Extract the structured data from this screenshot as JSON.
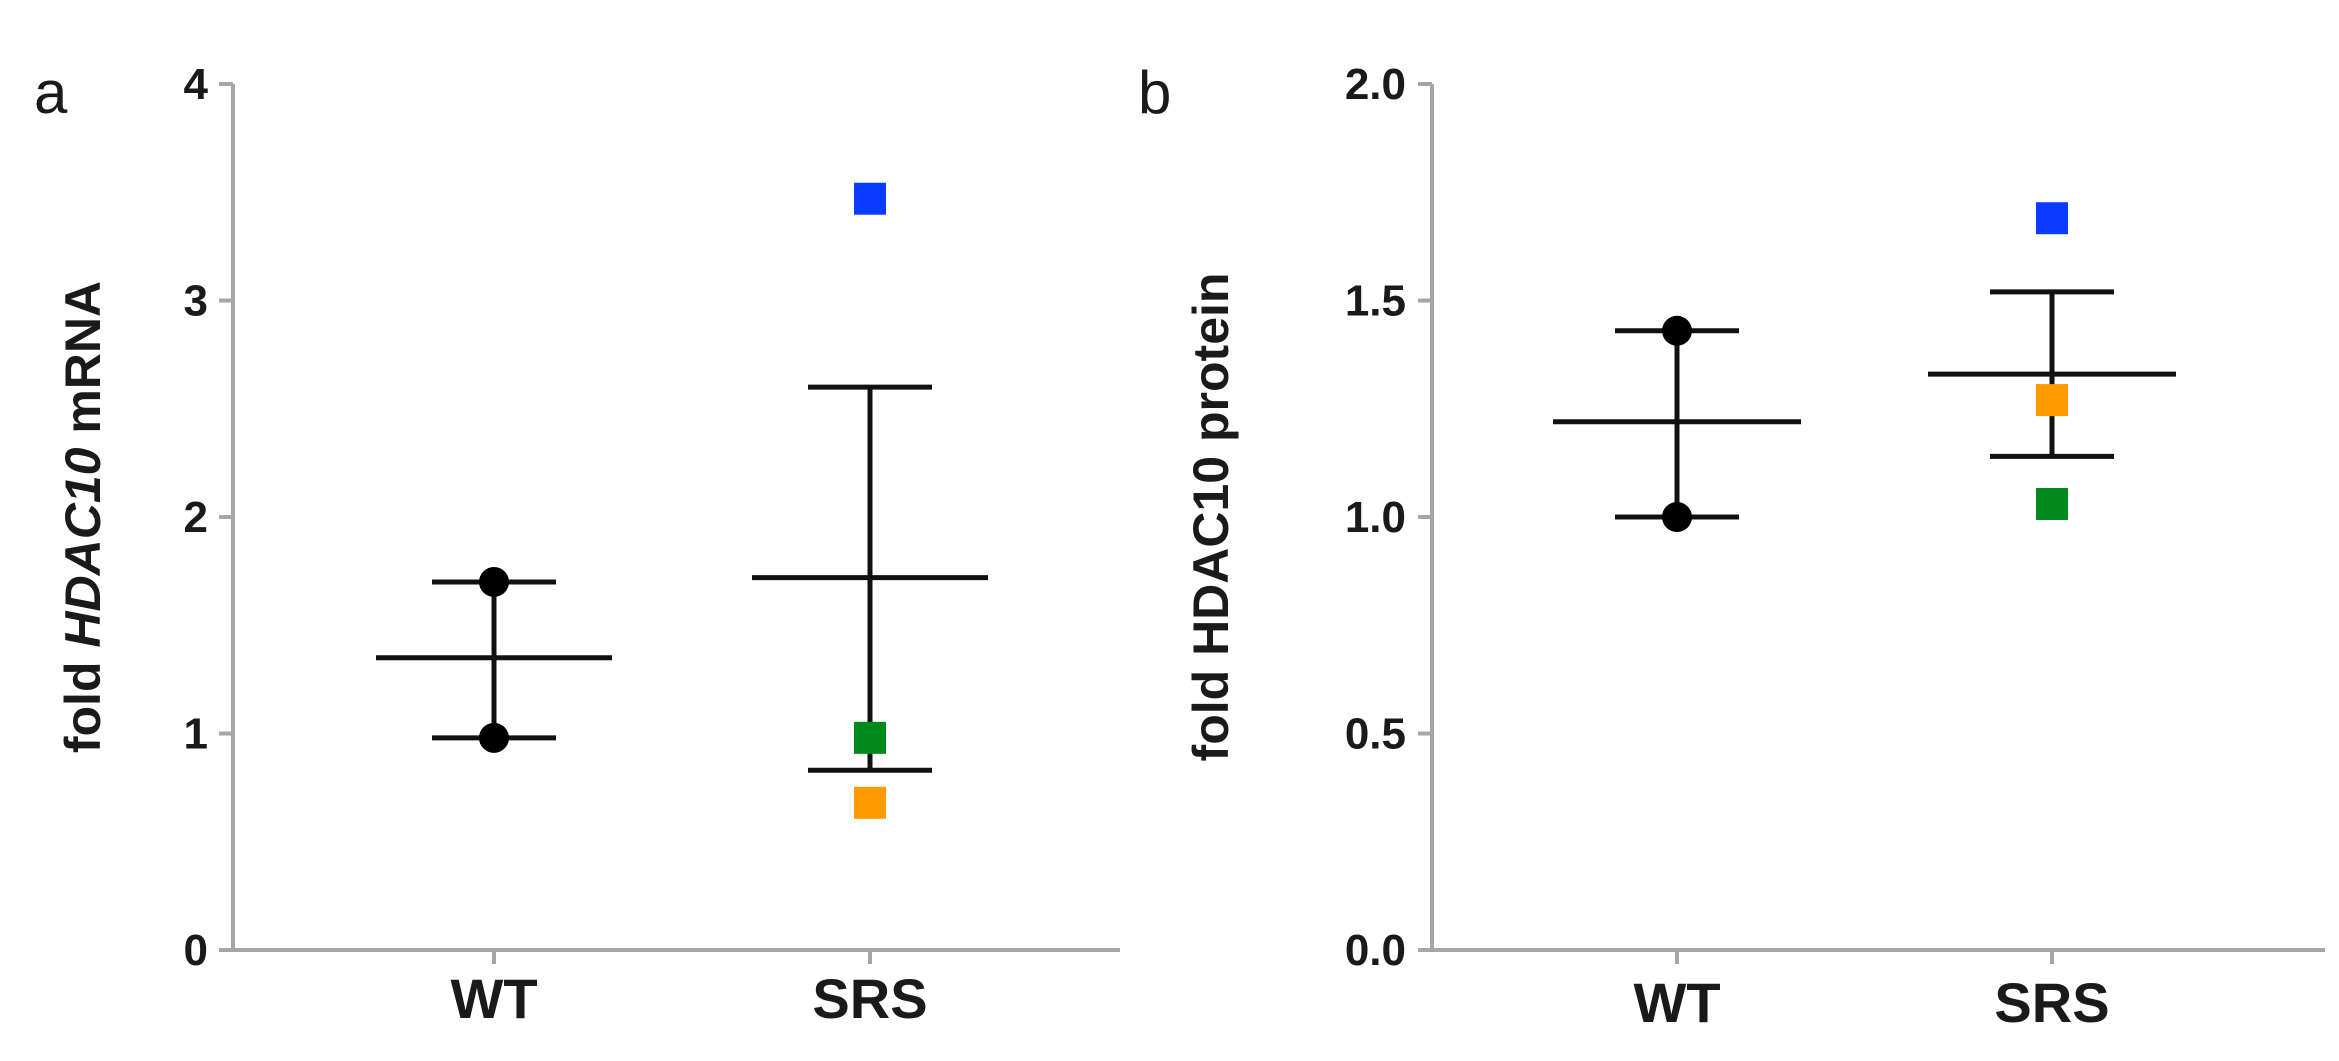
{
  "chart_data": [
    {
      "panel": "a",
      "type": "scatter",
      "ylabel": "fold HDAC10 mRNA",
      "ylabel_parts": [
        {
          "text": "fold ",
          "italic": false
        },
        {
          "text": "HDAC10",
          "italic": true
        },
        {
          "text": " mRNA",
          "italic": false
        }
      ],
      "ylim": [
        0,
        4
      ],
      "yticks": [
        0,
        1,
        2,
        3,
        4
      ],
      "ytick_labels": [
        "0",
        "1",
        "2",
        "3",
        "4"
      ],
      "categories": [
        "WT",
        "SRS"
      ],
      "groups": [
        {
          "category": "WT",
          "mean": 1.35,
          "error_low": 0.98,
          "error_high": 1.7,
          "points": [
            {
              "value": 1.7,
              "color": "#000000",
              "shape": "circle"
            },
            {
              "value": 0.98,
              "color": "#000000",
              "shape": "circle"
            }
          ]
        },
        {
          "category": "SRS",
          "mean": 1.72,
          "error_low": 0.83,
          "error_high": 2.6,
          "points": [
            {
              "value": 3.47,
              "color": "#0a3cff",
              "shape": "square"
            },
            {
              "value": 0.98,
              "color": "#008a1c",
              "shape": "square"
            },
            {
              "value": 0.68,
              "color": "#ff9a00",
              "shape": "square"
            }
          ]
        }
      ]
    },
    {
      "panel": "b",
      "type": "scatter",
      "ylabel": "fold HDAC10 protein",
      "ylabel_parts": [
        {
          "text": "fold HDAC10 protein",
          "italic": false
        }
      ],
      "ylim": [
        0,
        2.0
      ],
      "yticks": [
        0,
        0.5,
        1.0,
        1.5,
        2.0
      ],
      "ytick_labels": [
        "0.0",
        "0.5",
        "1.0",
        "1.5",
        "2.0"
      ],
      "categories": [
        "WT",
        "SRS"
      ],
      "groups": [
        {
          "category": "WT",
          "mean": 1.22,
          "error_low": 1.0,
          "error_high": 1.43,
          "points": [
            {
              "value": 1.43,
              "color": "#000000",
              "shape": "circle"
            },
            {
              "value": 1.0,
              "color": "#000000",
              "shape": "circle"
            }
          ]
        },
        {
          "category": "SRS",
          "mean": 1.33,
          "error_low": 1.14,
          "error_high": 1.52,
          "points": [
            {
              "value": 1.69,
              "color": "#0a3cff",
              "shape": "square"
            },
            {
              "value": 1.27,
              "color": "#ff9a00",
              "shape": "square"
            },
            {
              "value": 1.03,
              "color": "#008a1c",
              "shape": "square"
            }
          ]
        }
      ]
    }
  ]
}
